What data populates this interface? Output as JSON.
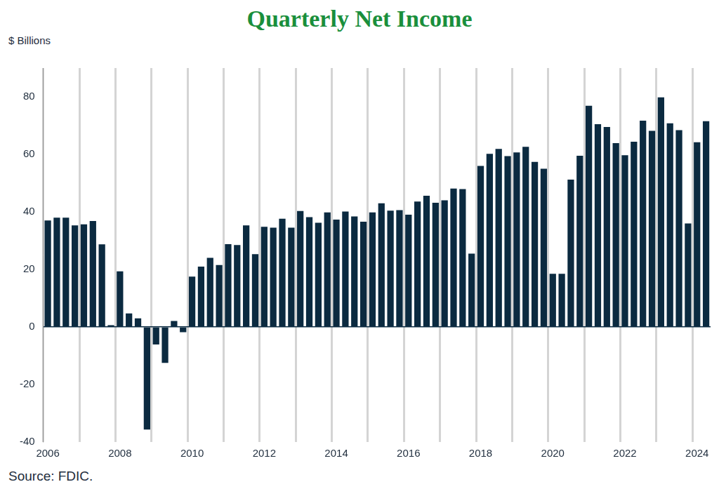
{
  "chart_data": {
    "type": "bar",
    "title": "Quarterly Net Income",
    "y_label": "$ Billions",
    "source": "Source: FDIC.",
    "categories": [
      "2006",
      null,
      null,
      null,
      null,
      null,
      null,
      null,
      "2008",
      null,
      null,
      null,
      null,
      null,
      null,
      null,
      "2010",
      null,
      null,
      null,
      null,
      null,
      null,
      null,
      "2012",
      null,
      null,
      null,
      null,
      null,
      null,
      null,
      "2014",
      null,
      null,
      null,
      null,
      null,
      null,
      null,
      "2016",
      null,
      null,
      null,
      null,
      null,
      null,
      null,
      "2018",
      null,
      null,
      null,
      null,
      null,
      null,
      null,
      "2020",
      null,
      null,
      null,
      null,
      null,
      null,
      null,
      "2022",
      null,
      null,
      null,
      null,
      null,
      null,
      null,
      "2024",
      null
    ],
    "values": [
      37,
      38,
      38,
      35.3,
      35.7,
      36.8,
      28.7,
      0.6,
      19.3,
      4.7,
      3.0,
      -35.7,
      -6.1,
      -12.5,
      2.1,
      -1.8,
      17.5,
      21,
      24,
      21.5,
      28.8,
      28.5,
      35.3,
      25.3,
      34.8,
      34.5,
      37.6,
      34.5,
      40.3,
      38.2,
      36.2,
      39.8,
      37.3,
      40.1,
      38.4,
      36.6,
      39.8,
      43.0,
      40.4,
      40.6,
      39.0,
      43.6,
      45.6,
      43.2,
      44.0,
      48.1,
      47.9,
      25.5,
      56,
      60.2,
      61.9,
      59.4,
      60.7,
      62.6,
      57.4,
      55,
      18.5,
      18.5,
      51.2,
      59.5,
      76.9,
      70.5,
      69.5,
      63.9,
      59.7,
      64.4,
      71.7,
      68.2,
      79.8,
      70.8,
      68.4,
      36.0,
      64.2,
      71.5
    ],
    "color": "#0b2a40",
    "ylim": [
      -40,
      90
    ],
    "yticks": [
      -40,
      -20,
      0,
      20,
      40,
      60,
      80
    ],
    "grid": "x"
  }
}
